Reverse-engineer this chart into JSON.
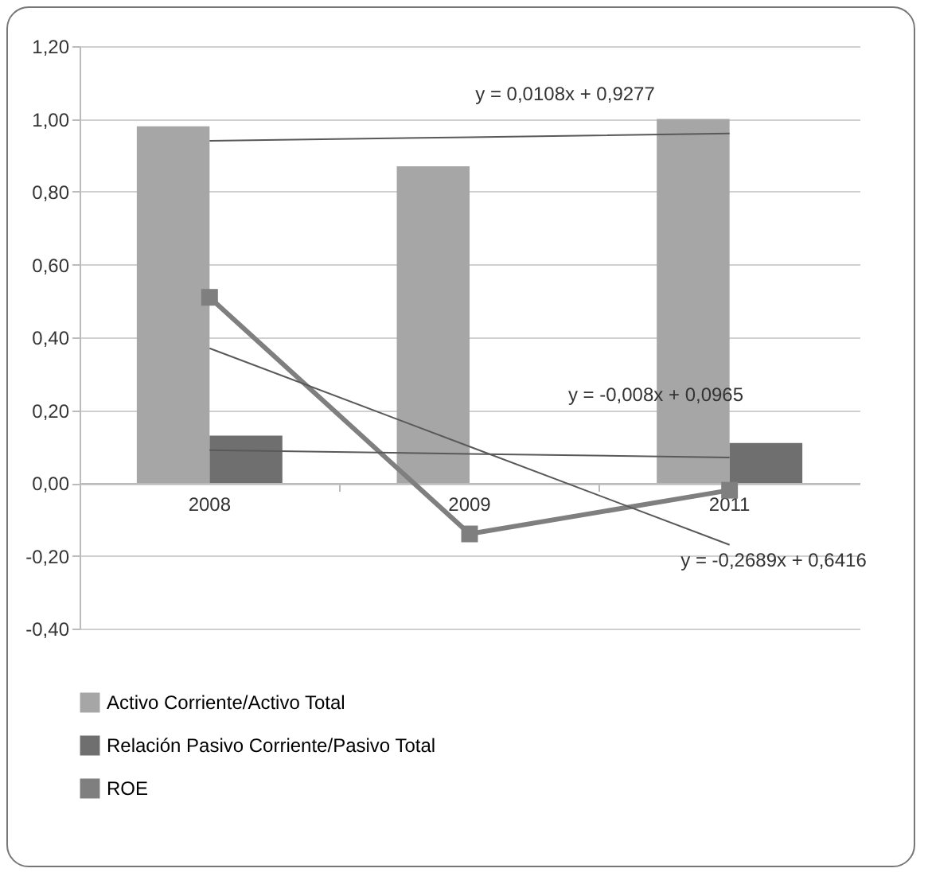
{
  "chart_data": {
    "type": "bar",
    "categories": [
      "2008",
      "2009",
      "2011"
    ],
    "series": [
      {
        "name": "Activo Corriente/Activo Total",
        "color": "#a6a6a6",
        "values": [
          0.98,
          0.87,
          1.0
        ]
      },
      {
        "name": "Relación Pasivo Corriente/Pasivo Total",
        "color": "#6f6f6f",
        "values": [
          0.13,
          0.0,
          0.11
        ]
      },
      {
        "name": "ROE",
        "type": "line",
        "color": "#7f7f7f",
        "marker": "square",
        "values": [
          0.51,
          -0.14,
          -0.02
        ]
      },
      {
        "type": "line",
        "color": "#595959",
        "marker": "none",
        "values": [
          0.94,
          0.95,
          0.96
        ]
      },
      {
        "type": "line",
        "color": "#595959",
        "marker": "none",
        "values": [
          0.09,
          0.08,
          0.07
        ]
      },
      {
        "type": "line",
        "color": "#595959",
        "marker": "none",
        "values": [
          0.37,
          0.1,
          -0.17
        ]
      }
    ],
    "annotations": [
      "y = 0,0108x + 0,9277",
      "y = -0,008x + 0,0965",
      "y = -0,2689x + 0,6416"
    ],
    "ylim": [
      -0.4,
      1.2
    ],
    "yticks": [
      {
        "value": -0.4,
        "label": "-0,40"
      },
      {
        "value": -0.2,
        "label": "-0,20"
      },
      {
        "value": 0,
        "label": "0,00"
      },
      {
        "value": 0.2,
        "label": "0,20"
      },
      {
        "value": 0.4,
        "label": "0,40"
      },
      {
        "value": 0.6,
        "label": "0,60"
      },
      {
        "value": 0.8,
        "label": "0,80"
      },
      {
        "value": 1.0,
        "label": "1,00"
      },
      {
        "value": 1.2,
        "label": "1,20"
      }
    ],
    "grid": "y",
    "legend": "bottom"
  }
}
